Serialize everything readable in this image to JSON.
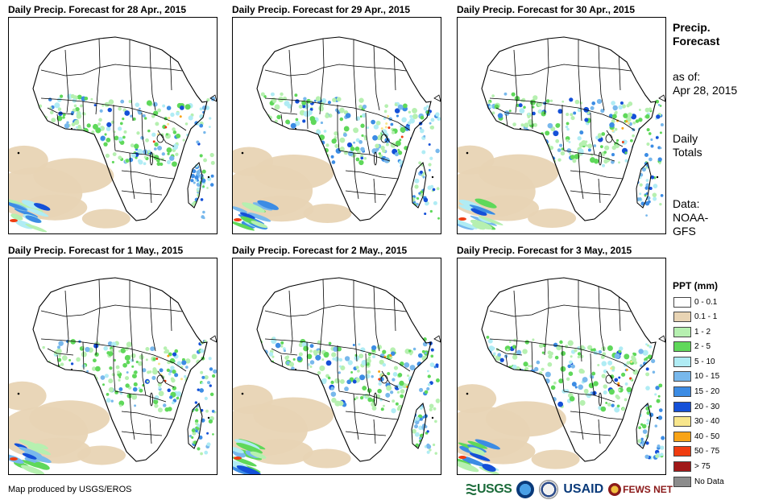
{
  "panels": [
    {
      "title": "Daily Precip. Forecast for 28 Apr., 2015",
      "variant": 0
    },
    {
      "title": "Daily Precip. Forecast for 29 Apr., 2015",
      "variant": 1
    },
    {
      "title": "Daily Precip. Forecast for 30 Apr., 2015",
      "variant": 2
    },
    {
      "title": "Daily Precip. Forecast for 1 May., 2015",
      "variant": 3
    },
    {
      "title": "Daily Precip. Forecast for 2 May., 2015",
      "variant": 4
    },
    {
      "title": "Daily Precip. Forecast for 3 May., 2015",
      "variant": 5
    }
  ],
  "sidebar": {
    "heading_line1": "Precip.",
    "heading_line2": "Forecast",
    "asof_label": "as of:",
    "asof_date": "Apr 28, 2015",
    "totals_line1": "Daily",
    "totals_line2": "Totals",
    "data_line1": "Data:",
    "data_line2": "NOAA-",
    "data_line3": "GFS"
  },
  "legend": {
    "title": "PPT (mm)",
    "items": [
      {
        "label": "0 - 0.1",
        "color": "#ffffff"
      },
      {
        "label": "0.1 - 1",
        "color": "#e8d4b4"
      },
      {
        "label": "1 - 2",
        "color": "#b6f0b0"
      },
      {
        "label": "2 - 5",
        "color": "#5fd85a"
      },
      {
        "label": "5 - 10",
        "color": "#b0ecf4"
      },
      {
        "label": "10 - 15",
        "color": "#78b8ec"
      },
      {
        "label": "15 - 20",
        "color": "#3c8ce4"
      },
      {
        "label": "20 - 30",
        "color": "#1450d8"
      },
      {
        "label": "30 - 40",
        "color": "#f8e68c"
      },
      {
        "label": "40 - 50",
        "color": "#f8a418"
      },
      {
        "label": "50 - 75",
        "color": "#f03c10"
      },
      {
        "label": "> 75",
        "color": "#a01818"
      },
      {
        "label": "No Data",
        "color": "#8c8c8c"
      }
    ]
  },
  "credit": "Map produced by USGS/EROS",
  "logos": {
    "usgs": "USGS",
    "usaid": "USAID",
    "fews": "FEWS NET"
  }
}
